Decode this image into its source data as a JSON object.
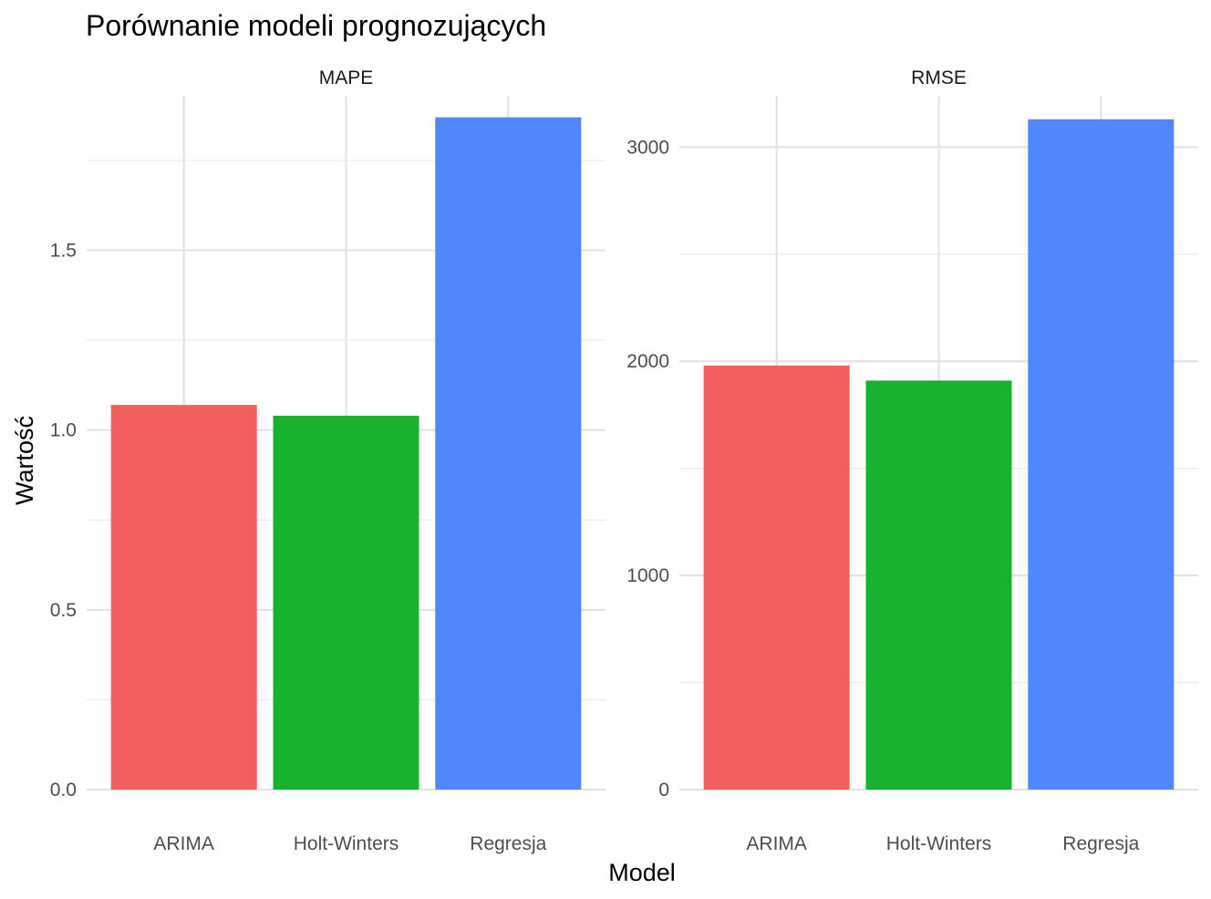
{
  "chart_data": {
    "type": "bar",
    "title": "Porównanie modeli prognozujących",
    "xlabel": "Model",
    "ylabel": "Wartość",
    "grid": true,
    "legend": "none",
    "categories": [
      "ARIMA",
      "Holt-Winters",
      "Regresja"
    ],
    "colors": [
      "#f25f5c",
      "#19b22f",
      "#5087ff"
    ],
    "panels": [
      {
        "name": "MAPE",
        "values": [
          1.07,
          1.04,
          1.87
        ],
        "ylim": [
          0,
          1.93
        ],
        "ticks": [
          0,
          0.5,
          1,
          1.5
        ],
        "tick_labels": [
          "0.0",
          "0.5",
          "1.0",
          "1.5"
        ],
        "minor_ticks": [
          0.25,
          0.75,
          1.25,
          1.75
        ]
      },
      {
        "name": "RMSE",
        "values": [
          1980,
          1910,
          3130
        ],
        "ylim": [
          0,
          3240
        ],
        "ticks": [
          0,
          1000,
          2000,
          3000
        ],
        "tick_labels": [
          "0",
          "1000",
          "2000",
          "3000"
        ],
        "minor_ticks": [
          500,
          1500,
          2500
        ]
      }
    ]
  }
}
